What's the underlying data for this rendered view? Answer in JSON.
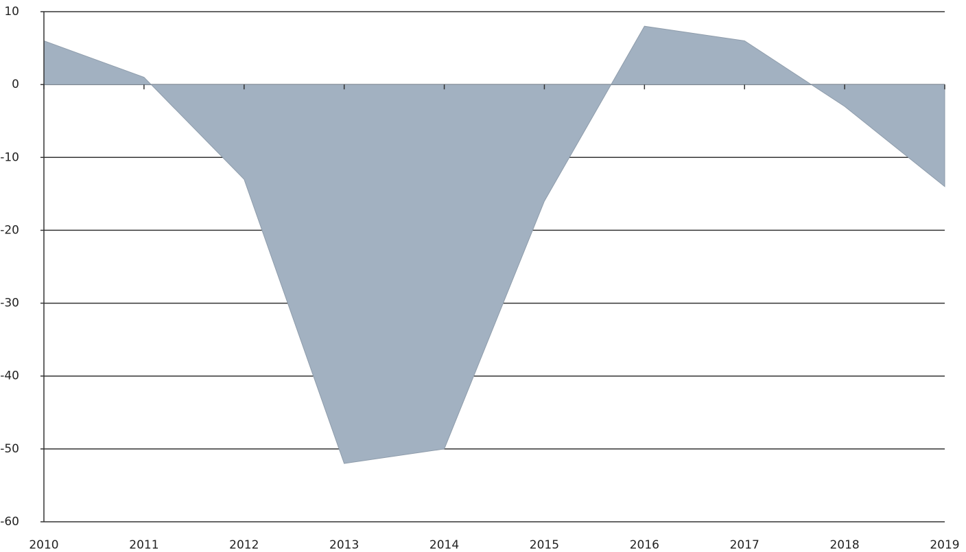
{
  "chart_data": {
    "type": "area",
    "categories": [
      "2010",
      "2011",
      "2012",
      "2013",
      "2014",
      "2015",
      "2016",
      "2017",
      "2018",
      "2019"
    ],
    "values": [
      6,
      1,
      -13,
      -52,
      -50,
      -16,
      8,
      6,
      -3,
      -14
    ],
    "color": "#a2b1c1",
    "ylim": [
      -60,
      10
    ],
    "yticks": [
      -60,
      -50,
      -40,
      -30,
      -20,
      -10,
      0,
      10
    ],
    "grid": true
  }
}
